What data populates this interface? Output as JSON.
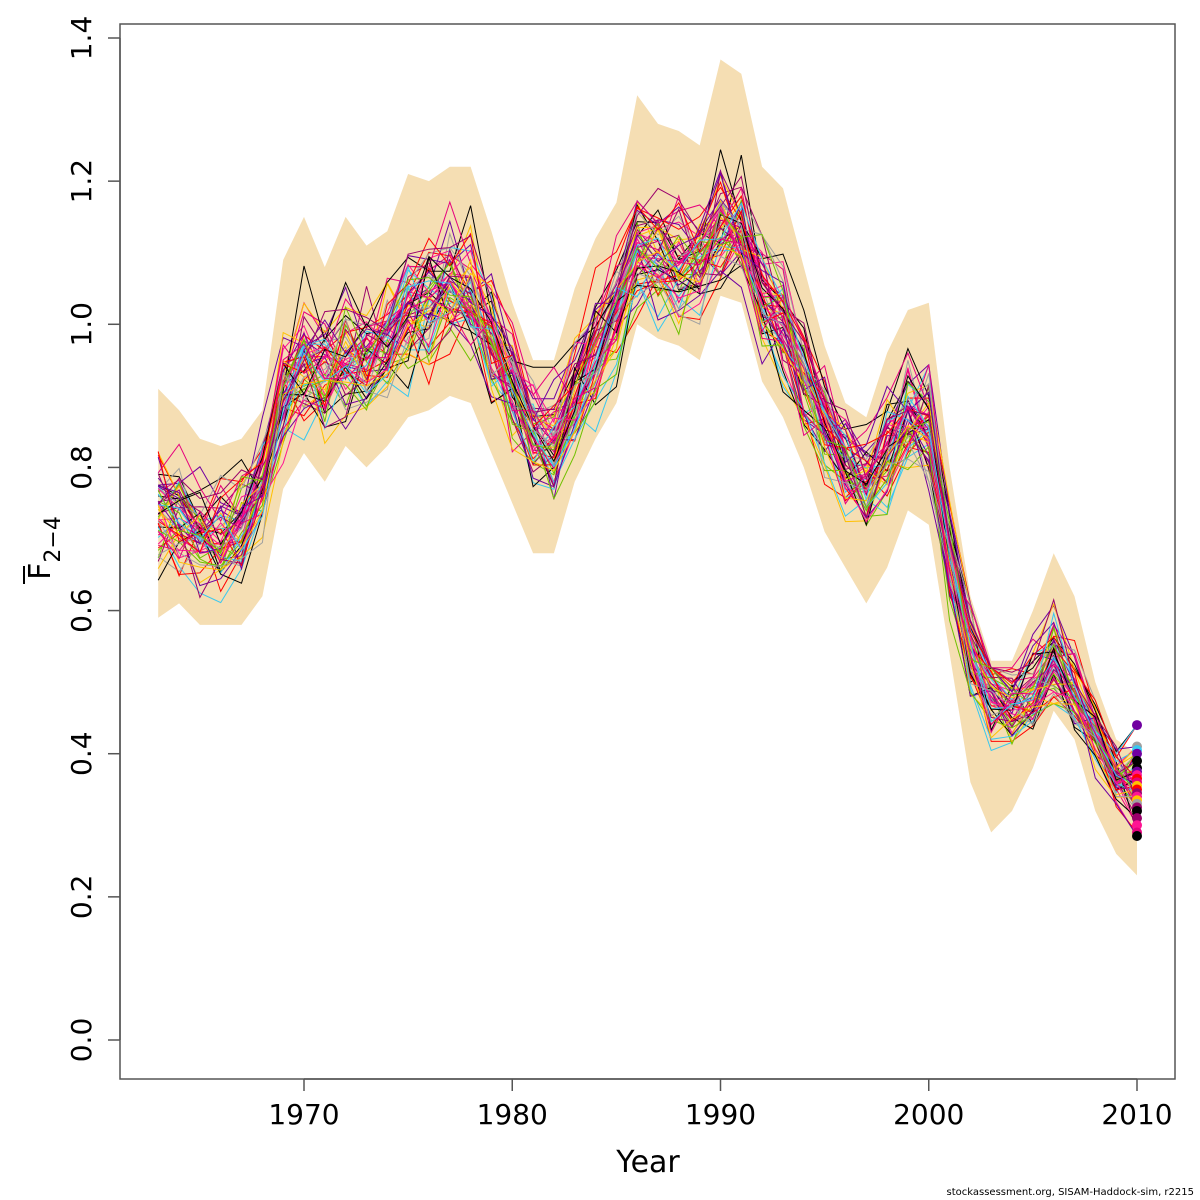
{
  "chart_data": {
    "type": "line",
    "title": "",
    "xlabel": "Year",
    "ylabel_main": "F",
    "ylabel_sub": "2−4",
    "ylabel_overline": true,
    "xlim": [
      1962,
      2012
    ],
    "ylim": [
      0,
      1.4
    ],
    "x_ticks": [
      1970,
      1980,
      1990,
      2000,
      2010
    ],
    "x_tick_labels": [
      "1970",
      "1980",
      "1990",
      "2000",
      "2010"
    ],
    "y_ticks": [
      0.0,
      0.2,
      0.4,
      0.6,
      0.8,
      1.0,
      1.2,
      1.4
    ],
    "y_tick_labels": [
      "0.0",
      "0.2",
      "0.4",
      "0.6",
      "0.8",
      "1.0",
      "1.2",
      "1.4"
    ],
    "grid": false,
    "legend": "none",
    "band_color": "#f5deb3",
    "x": [
      1963,
      1964,
      1965,
      1966,
      1967,
      1968,
      1969,
      1970,
      1971,
      1972,
      1973,
      1974,
      1975,
      1976,
      1977,
      1978,
      1979,
      1980,
      1981,
      1982,
      1983,
      1984,
      1985,
      1986,
      1987,
      1988,
      1989,
      1990,
      1991,
      1992,
      1993,
      1994,
      1995,
      1996,
      1997,
      1998,
      1999,
      2000,
      2001,
      2002,
      2003,
      2004,
      2005,
      2006,
      2007,
      2008,
      2009,
      2010
    ],
    "band_upper": [
      0.91,
      0.88,
      0.84,
      0.83,
      0.84,
      0.88,
      1.09,
      1.15,
      1.08,
      1.15,
      1.11,
      1.13,
      1.21,
      1.2,
      1.22,
      1.22,
      1.13,
      1.03,
      0.95,
      0.95,
      1.05,
      1.12,
      1.17,
      1.32,
      1.28,
      1.27,
      1.25,
      1.37,
      1.35,
      1.22,
      1.19,
      1.08,
      0.97,
      0.89,
      0.87,
      0.96,
      1.02,
      1.03,
      0.8,
      0.62,
      0.53,
      0.53,
      0.6,
      0.68,
      0.62,
      0.5,
      0.42,
      0.4
    ],
    "band_lower": [
      0.59,
      0.61,
      0.58,
      0.58,
      0.58,
      0.62,
      0.77,
      0.82,
      0.78,
      0.83,
      0.8,
      0.83,
      0.87,
      0.88,
      0.9,
      0.89,
      0.82,
      0.75,
      0.68,
      0.68,
      0.78,
      0.84,
      0.89,
      1.0,
      0.98,
      0.97,
      0.95,
      1.04,
      1.03,
      0.92,
      0.87,
      0.8,
      0.71,
      0.66,
      0.61,
      0.66,
      0.74,
      0.72,
      0.54,
      0.36,
      0.29,
      0.32,
      0.38,
      0.46,
      0.42,
      0.32,
      0.26,
      0.23
    ],
    "median": [
      0.74,
      0.73,
      0.71,
      0.7,
      0.72,
      0.78,
      0.9,
      0.95,
      0.93,
      0.96,
      0.95,
      0.98,
      1.02,
      1.03,
      1.05,
      1.04,
      0.98,
      0.92,
      0.85,
      0.84,
      0.9,
      0.97,
      1.02,
      1.1,
      1.1,
      1.09,
      1.09,
      1.14,
      1.13,
      1.05,
      1.0,
      0.93,
      0.86,
      0.81,
      0.78,
      0.82,
      0.87,
      0.86,
      0.68,
      0.55,
      0.49,
      0.47,
      0.49,
      0.53,
      0.49,
      0.43,
      0.37,
      0.35
    ],
    "n_replicates": 60,
    "replicate_colors": [
      "#000000",
      "#ff1493",
      "#ff0000",
      "#7000a0",
      "#38c8f0",
      "#ffc000",
      "#70c000",
      "#a0a0a0",
      "#9b006b",
      "#e6007e"
    ],
    "endpoint_year": 2010,
    "endpoint_values": [
      0.44,
      0.41,
      0.405,
      0.4,
      0.39,
      0.38,
      0.375,
      0.37,
      0.365,
      0.36,
      0.355,
      0.35,
      0.345,
      0.34,
      0.335,
      0.33,
      0.325,
      0.32,
      0.31,
      0.3,
      0.29,
      0.285
    ],
    "endpoint_colors": [
      "#7000a0",
      "#a0a0a0",
      "#38c8f0",
      "#7000a0",
      "#000000",
      "#000000",
      "#7000a0",
      "#ff1493",
      "#ff0000",
      "#e6007e",
      "#ffc000",
      "#ff0000",
      "#9b006b",
      "#ff1493",
      "#ffc000",
      "#a0a0a0",
      "#9b006b",
      "#000000",
      "#9b006b",
      "#ff1493",
      "#e6007e",
      "#000000"
    ]
  },
  "footer": "stockassessment.org, SISAM-Haddock-sim, r2215"
}
